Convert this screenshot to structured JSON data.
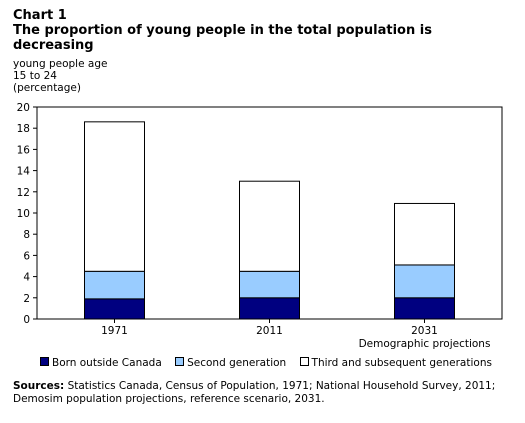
{
  "chart_data": {
    "type": "bar",
    "stacked": true,
    "chart_label": "Chart 1",
    "title": "The proportion of young people in the total population is decreasing",
    "ylabel": "young people age\n15 to 24\n(percentage)",
    "xlabel": "",
    "ylim": [
      0,
      20
    ],
    "yticks": [
      0,
      2,
      4,
      6,
      8,
      10,
      12,
      14,
      16,
      18,
      20
    ],
    "grid": false,
    "legend_position": "bottom",
    "categories": [
      "1971",
      "2011",
      "2031"
    ],
    "category_sublabels": [
      "",
      "",
      "Demographic projections"
    ],
    "series": [
      {
        "name": "Born outside Canada",
        "color": "#000080",
        "values": [
          1.9,
          2.0,
          2.0
        ]
      },
      {
        "name": "Second generation",
        "color": "#99ccff",
        "values": [
          2.6,
          2.5,
          3.1
        ]
      },
      {
        "name": "Third and subsequent generations",
        "color": "#ffffff",
        "values": [
          14.1,
          8.5,
          5.8
        ]
      }
    ]
  },
  "sources": {
    "label": "Sources:",
    "text": "Statistics Canada, Census of Population, 1971; National Household Survey, 2011; Demosim population projections, reference scenario, 2031."
  }
}
